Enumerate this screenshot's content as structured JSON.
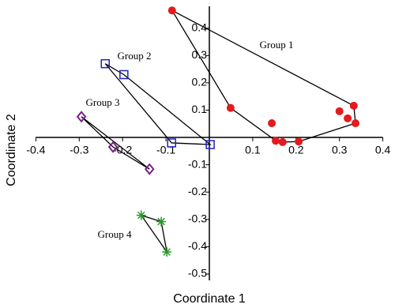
{
  "chart_data": {
    "type": "scatter",
    "xlabel": "Coordinate 1",
    "ylabel": "Coordinate 2",
    "xlim": [
      -0.4,
      0.4
    ],
    "ylim": [
      -0.5,
      0.48
    ],
    "xticks": [
      -0.4,
      -0.3,
      -0.2,
      -0.1,
      0.1,
      0.2,
      0.3,
      0.4
    ],
    "yticks": [
      -0.5,
      -0.4,
      -0.3,
      -0.2,
      -0.1,
      0.1,
      0.2,
      0.3,
      0.4
    ],
    "series": [
      {
        "name": "Group 1",
        "color": "#e41a1c",
        "marker": "circle",
        "x": [
          -0.086,
          0.049,
          0.144,
          0.153,
          0.169,
          0.206,
          0.3,
          0.319,
          0.333,
          0.337
        ],
        "values": [
          0.465,
          0.108,
          0.052,
          -0.012,
          -0.017,
          -0.015,
          0.096,
          0.07,
          0.116,
          0.052
        ]
      },
      {
        "name": "Group 2",
        "color": "#1f1fc8",
        "marker": "square",
        "x": [
          -0.24,
          -0.197,
          -0.087,
          0.002
        ],
        "values": [
          0.27,
          0.23,
          -0.02,
          -0.026
        ]
      },
      {
        "name": "Group 3",
        "color": "#7b1f8a",
        "marker": "diamond",
        "x": [
          -0.295,
          -0.222,
          -0.138
        ],
        "values": [
          0.076,
          -0.035,
          -0.116
        ]
      },
      {
        "name": "Group 4",
        "color": "#2a9a2a",
        "marker": "star",
        "x": [
          -0.157,
          -0.111,
          -0.098
        ],
        "values": [
          -0.285,
          -0.308,
          -0.419
        ]
      }
    ]
  }
}
